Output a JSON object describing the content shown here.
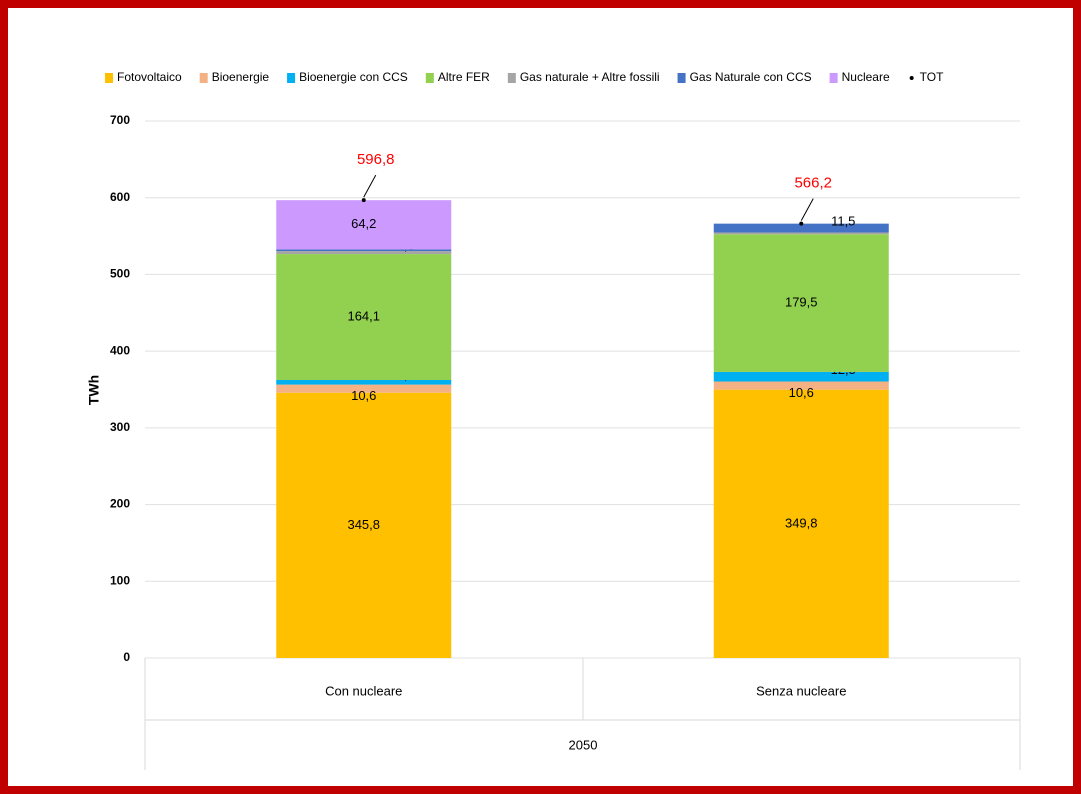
{
  "chart_data": {
    "type": "bar",
    "stacked": true,
    "categories": [
      "Con nucleare",
      "Senza nucleare"
    ],
    "x_group_label": "2050",
    "y_label": "TWh",
    "ylim": [
      0,
      700
    ],
    "yticks": [
      0,
      100,
      200,
      300,
      400,
      500,
      600,
      700
    ],
    "grid": true,
    "legend": "top",
    "series": [
      {
        "name": "Fotovoltaico",
        "color": "#ffc000",
        "values": [
          345.8,
          349.8
        ],
        "value_labels": [
          "345,8",
          "349,8"
        ]
      },
      {
        "name": "Bioenergie",
        "color": "#f4b183",
        "values": [
          10.6,
          10.6
        ],
        "value_labels": [
          "10,6",
          "10,6"
        ]
      },
      {
        "name": "Bioenergie con CCS",
        "color": "#00b0f0",
        "values": [
          6.0,
          12.5
        ],
        "value_labels": [
          "6,0",
          "12,5"
        ]
      },
      {
        "name": "Altre FER",
        "color": "#92d050",
        "values": [
          164.1,
          179.5
        ],
        "value_labels": [
          "164,1",
          "179,5"
        ]
      },
      {
        "name": "Gas naturale + Altre fossili",
        "color": "#a5a5a5",
        "values": [
          4.0,
          2.3
        ],
        "value_labels": [
          "4,0",
          null
        ]
      },
      {
        "name": "Gas Naturale con CCS",
        "color": "#4472c4",
        "values": [
          2.1,
          11.5
        ],
        "value_labels": [
          null,
          "11,5"
        ]
      },
      {
        "name": "Nucleare",
        "color": "#cc99ff",
        "values": [
          64.2,
          0
        ],
        "value_labels": [
          "64,2",
          null
        ]
      },
      {
        "name": "TOT",
        "color": "#000000",
        "type": "scatter",
        "label_color": "#ff0000",
        "values": [
          596.8,
          566.2
        ],
        "value_labels": [
          "596,8",
          "566,2"
        ]
      }
    ]
  }
}
